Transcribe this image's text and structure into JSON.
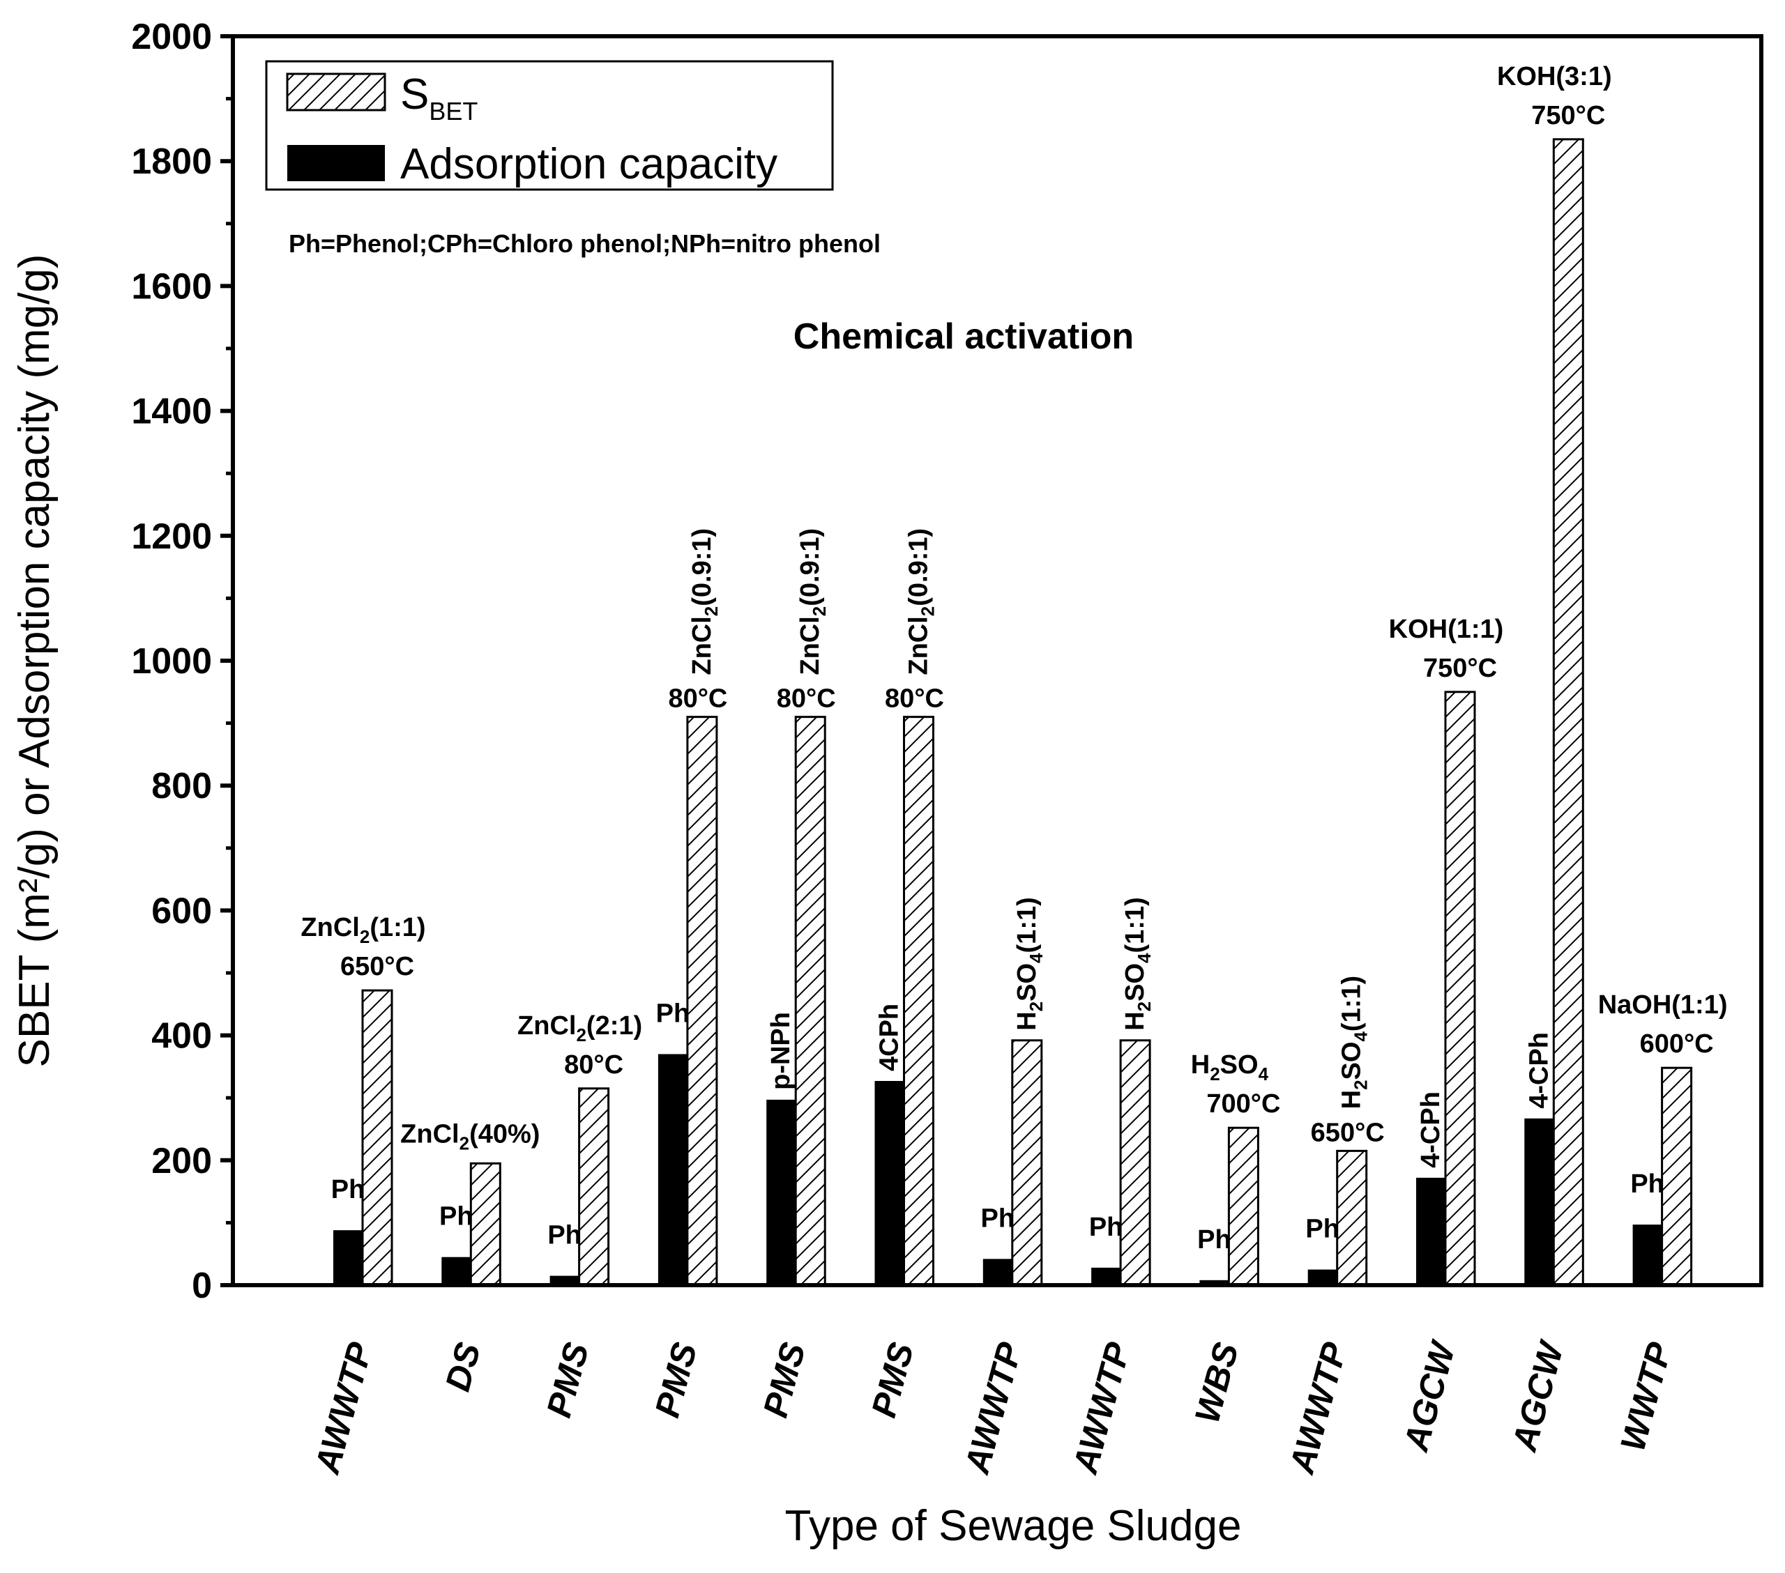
{
  "chart_data": {
    "type": "bar",
    "title": "",
    "heading": "Chemical activation",
    "note": "Ph=Phenol;CPh=Chloro phenol;NPh=nitro phenol",
    "xlabel": "Type of Sewage Sludge",
    "ylabel": "SBET (m²/g) or Adsorption capacity (mg/g)",
    "ylim": [
      0,
      2000
    ],
    "yticks": [
      0,
      200,
      400,
      600,
      800,
      1000,
      1200,
      1400,
      1600,
      1800,
      2000
    ],
    "legend_position": "top-left",
    "legend": {
      "sbet_main": "S",
      "sbet_sub": "BET",
      "adsorption": "Adsorption capacity"
    },
    "categories": [
      "AWWTP",
      "DS",
      "PMS",
      "PMS",
      "PMS",
      "PMS",
      "AWWTP",
      "AWWTP",
      "WBS",
      "AWWTP",
      "AGCW",
      "AGCW",
      "WWTP"
    ],
    "series": [
      {
        "name": "Adsorption capacity",
        "color": "#000000",
        "values": [
          88,
          45,
          15,
          370,
          297,
          327,
          42,
          28,
          8,
          25,
          172,
          267,
          97
        ]
      },
      {
        "name": "SBET",
        "pattern": "hatched",
        "values": [
          472,
          195,
          315,
          910,
          910,
          910,
          392,
          392,
          252,
          215,
          950,
          1835,
          348
        ]
      }
    ],
    "adsorbate_labels": [
      "Ph",
      "Ph",
      "Ph",
      "Ph",
      "p-NPh",
      "4CPh",
      "Ph",
      "Ph",
      "Ph",
      "Ph",
      "4-CPh",
      "4-CPh",
      "Ph"
    ],
    "activation_labels": [
      [
        "ZnCl|2|(1:1)",
        "650°C"
      ],
      [
        "ZnCl|2|(40%)"
      ],
      [
        "ZnCl|2|(2:1)",
        "80°C"
      ],
      [
        "ZnCl|2|(0.9:1)",
        "80°C"
      ],
      [
        "ZnCl|2|(0.9:1)",
        "80°C"
      ],
      [
        "ZnCl|2|(0.9:1)",
        "80°C"
      ],
      [
        "H|2|SO|4|(1:1)"
      ],
      [
        "H|2|SO|4|(1:1)"
      ],
      [
        "H|2|SO|4|",
        "700°C"
      ],
      [
        "H|2|SO|4|(1:1)",
        "650°C"
      ],
      [
        "KOH(1:1)",
        "750°C"
      ],
      [
        "KOH(3:1)",
        "750°C"
      ],
      [
        "NaOH(1:1)",
        "600°C"
      ]
    ]
  }
}
